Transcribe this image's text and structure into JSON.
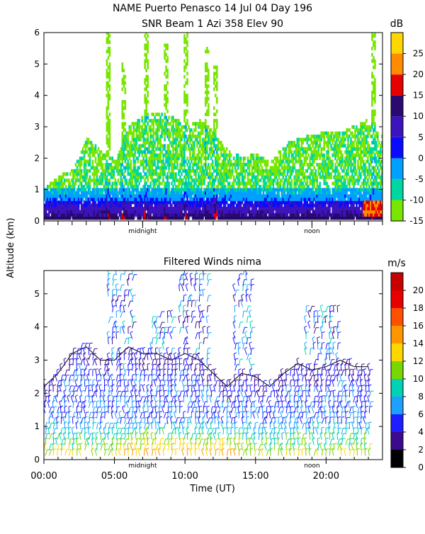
{
  "figure": {
    "title_line1": "NAME Puerto Penasco  14 Jul 04 Day 196",
    "ylabel_shared": "Altitude (km)",
    "xlabel": "Time (UT)",
    "x_tick_labels": [
      "00:00",
      "05:00",
      "10:00",
      "15:00",
      "20:00"
    ]
  },
  "chart_data": [
    {
      "type": "heatmap",
      "title": "SNR Beam 1 Azi 358 Elev 90",
      "xlim": [
        0,
        24
      ],
      "ylim": [
        0,
        6
      ],
      "y_ticks": [
        0,
        1,
        2,
        3,
        4,
        5,
        6
      ],
      "x_markers": [
        {
          "x": 7.0,
          "label": "midnight"
        },
        {
          "x": 19.0,
          "label": "noon"
        }
      ],
      "colorbar": {
        "unit": "dB",
        "ticks": [
          -15,
          -10,
          -5,
          0,
          5,
          10,
          15,
          20,
          25
        ],
        "bins": [
          {
            "from": -15,
            "to": -10,
            "color": "#78e600"
          },
          {
            "from": -10,
            "to": -5,
            "color": "#00d7a0"
          },
          {
            "from": -5,
            "to": 0,
            "color": "#00a0ff"
          },
          {
            "from": 0,
            "to": 5,
            "color": "#0a0aff"
          },
          {
            "from": 5,
            "to": 10,
            "color": "#3c14be"
          },
          {
            "from": 10,
            "to": 15,
            "color": "#2a0a6e"
          },
          {
            "from": 15,
            "to": 20,
            "color": "#e60000"
          },
          {
            "from": 20,
            "to": 25,
            "color": "#ff8c00"
          },
          {
            "from": 25,
            "to": 30,
            "color": "#ffd700"
          }
        ]
      },
      "echo_top_km": [
        [
          0,
          1.0
        ],
        [
          1,
          1.4
        ],
        [
          2,
          1.6
        ],
        [
          3,
          2.6
        ],
        [
          4,
          2.2
        ],
        [
          5,
          1.9
        ],
        [
          6,
          3.0
        ],
        [
          7,
          3.3
        ],
        [
          8,
          3.4
        ],
        [
          9,
          3.3
        ],
        [
          10,
          3.0
        ],
        [
          11,
          3.2
        ],
        [
          12,
          2.8
        ],
        [
          13,
          2.2
        ],
        [
          14,
          2.0
        ],
        [
          15,
          2.1
        ],
        [
          16,
          1.8
        ],
        [
          17,
          2.4
        ],
        [
          18,
          2.6
        ],
        [
          19,
          2.7
        ],
        [
          20,
          2.8
        ],
        [
          21,
          2.8
        ],
        [
          22,
          3.0
        ],
        [
          23,
          3.2
        ],
        [
          24,
          2.6
        ]
      ],
      "plumes": [
        {
          "x": 4.5,
          "top": 6.0
        },
        {
          "x": 5.6,
          "top": 5.0
        },
        {
          "x": 7.2,
          "top": 6.0
        },
        {
          "x": 8.6,
          "top": 5.6
        },
        {
          "x": 10.0,
          "top": 6.0
        },
        {
          "x": 11.5,
          "top": 5.5
        },
        {
          "x": 12.1,
          "top": 5.0
        },
        {
          "x": 23.3,
          "top": 6.0
        }
      ]
    },
    {
      "type": "barbs",
      "title": "Filtered Winds nima",
      "xlim": [
        0,
        24
      ],
      "ylim": [
        0,
        5.7
      ],
      "y_ticks": [
        0,
        1,
        2,
        3,
        4,
        5
      ],
      "x_ticks": [
        0,
        5,
        10,
        15,
        20
      ],
      "x_markers": [
        {
          "x": 7.0,
          "label": "midnight"
        },
        {
          "x": 19.0,
          "label": "noon"
        }
      ],
      "colorbar": {
        "unit": "m/s",
        "ticks": [
          0,
          2,
          4,
          6,
          8,
          10,
          12,
          14,
          16,
          18,
          20
        ],
        "bins": [
          {
            "from": 0,
            "to": 2,
            "color": "#000000"
          },
          {
            "from": 2,
            "to": 4,
            "color": "#3c0a8c"
          },
          {
            "from": 4,
            "to": 6,
            "color": "#1e1eff"
          },
          {
            "from": 6,
            "to": 8,
            "color": "#1ea0ff"
          },
          {
            "from": 8,
            "to": 10,
            "color": "#00d2b4"
          },
          {
            "from": 10,
            "to": 12,
            "color": "#78d700"
          },
          {
            "from": 12,
            "to": 14,
            "color": "#ffd700"
          },
          {
            "from": 14,
            "to": 16,
            "color": "#ff9600"
          },
          {
            "from": 16,
            "to": 18,
            "color": "#ff5000"
          },
          {
            "from": 18,
            "to": 20,
            "color": "#e60000"
          },
          {
            "from": 20,
            "to": 22,
            "color": "#c80000"
          }
        ]
      },
      "boundary_km": [
        [
          0,
          2.2
        ],
        [
          1,
          2.6
        ],
        [
          2,
          3.2
        ],
        [
          3,
          3.4
        ],
        [
          4,
          3.0
        ],
        [
          5,
          3.0
        ],
        [
          6,
          3.4
        ],
        [
          7,
          3.2
        ],
        [
          8,
          3.2
        ],
        [
          9,
          3.0
        ],
        [
          10,
          3.2
        ],
        [
          11,
          3.0
        ],
        [
          12,
          2.6
        ],
        [
          13,
          2.2
        ],
        [
          14,
          2.6
        ],
        [
          15,
          2.5
        ],
        [
          16,
          2.2
        ],
        [
          17,
          2.6
        ],
        [
          18,
          2.9
        ],
        [
          19,
          2.7
        ],
        [
          20,
          2.8
        ],
        [
          21,
          3.0
        ],
        [
          22,
          2.8
        ],
        [
          23,
          2.8
        ]
      ]
    }
  ]
}
